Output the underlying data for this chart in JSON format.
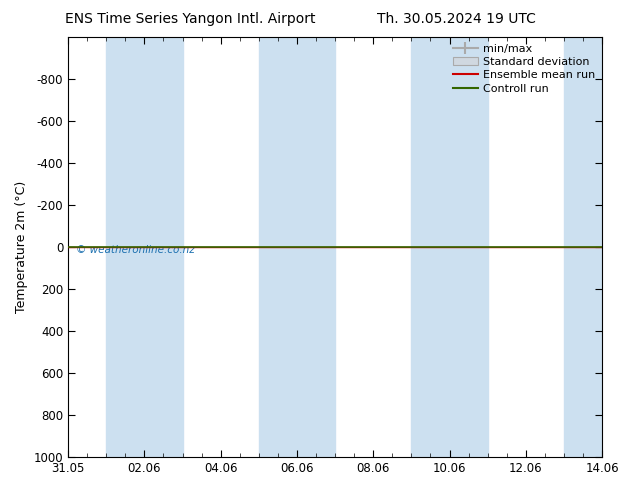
{
  "title_left": "ENS Time Series Yangon Intl. Airport",
  "title_right": "Th. 30.05.2024 19 UTC",
  "ylabel": "Temperature 2m (°C)",
  "watermark": "© weatheronline.co.nz",
  "xtick_labels": [
    "31.05",
    "02.06",
    "04.06",
    "06.06",
    "08.06",
    "10.06",
    "12.06",
    "14.06"
  ],
  "xtick_positions": [
    0,
    2,
    4,
    6,
    8,
    10,
    12,
    14
  ],
  "ylim_top": -1000,
  "ylim_bottom": 1000,
  "ytick_positions": [
    -800,
    -600,
    -400,
    -200,
    0,
    200,
    400,
    600,
    800,
    1000
  ],
  "ytick_labels": [
    "-800",
    "-600",
    "-400",
    "-200",
    "0",
    "200",
    "400",
    "600",
    "800",
    "1000"
  ],
  "bg_color": "#ffffff",
  "plot_bg_color": "#ffffff",
  "shaded_band_color": "#cce0f0",
  "shaded_bands_x": [
    [
      1.0,
      3.0
    ],
    [
      5.0,
      7.0
    ],
    [
      9.0,
      11.0
    ],
    [
      13.0,
      14.2
    ]
  ],
  "green_line_y": 0,
  "red_line_y": 0,
  "green_line_color": "#336600",
  "red_line_color": "#cc0000",
  "legend_entries": [
    "min/max",
    "Standard deviation",
    "Ensemble mean run",
    "Controll run"
  ],
  "legend_line_colors": [
    "#aaaaaa",
    "#bbbbbb",
    "#cc0000",
    "#336600"
  ],
  "title_fontsize": 10,
  "axis_label_fontsize": 9,
  "watermark_color": "#1a6faf",
  "tick_label_fontsize": 8.5,
  "legend_fontsize": 8
}
